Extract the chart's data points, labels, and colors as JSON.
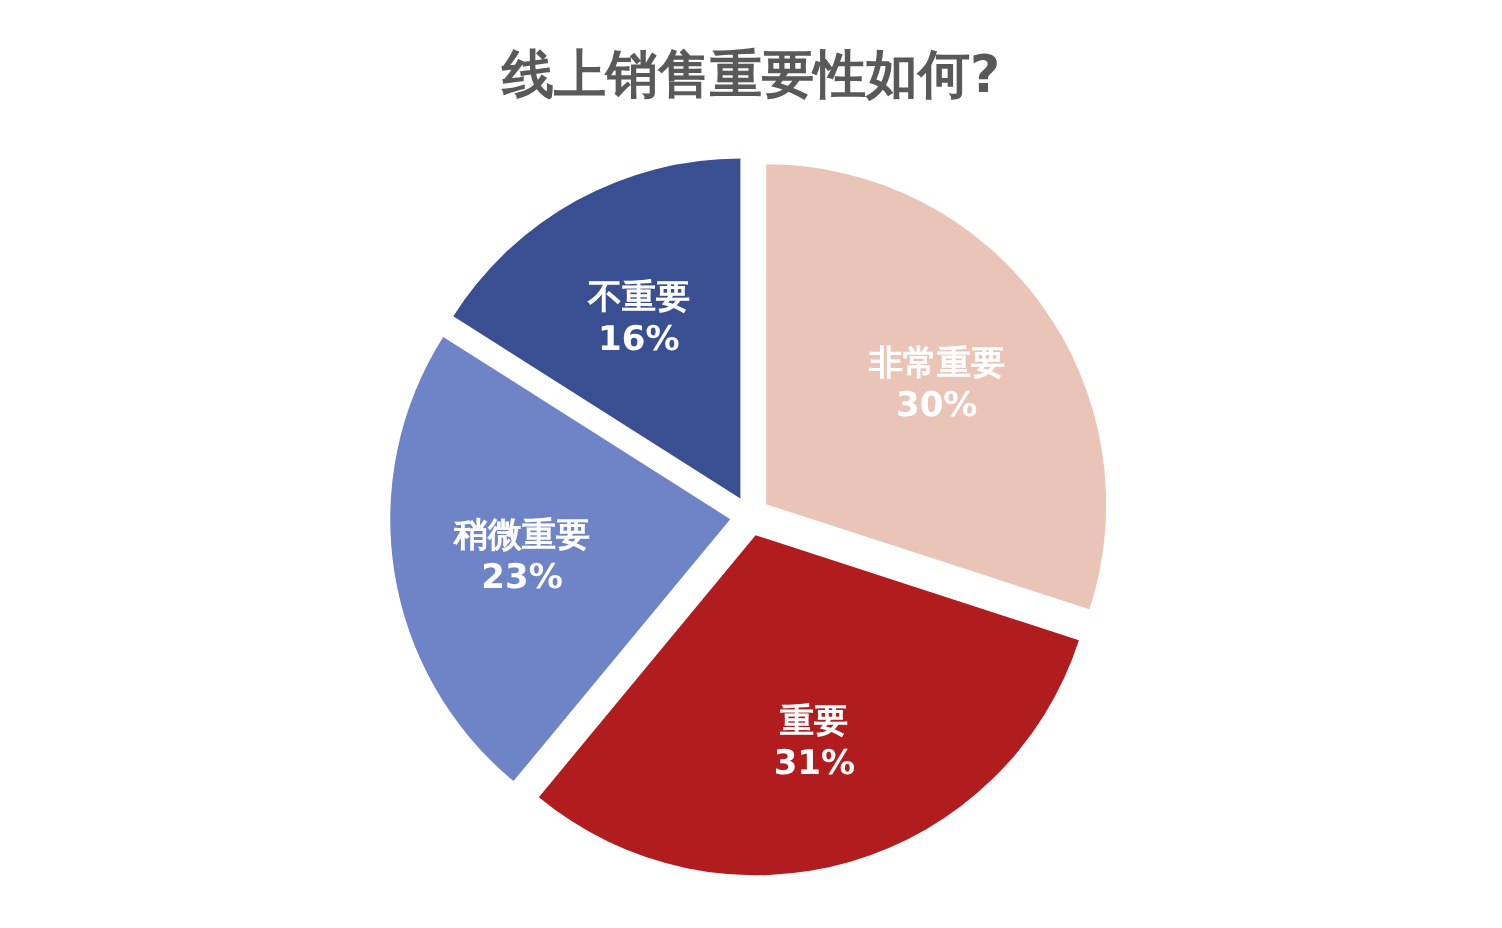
{
  "chart_data": {
    "type": "pie",
    "title": "线上销售重要性如何?",
    "categories": [
      "非常重要",
      "重要",
      "稍微重要",
      "不重要"
    ],
    "values": [
      30,
      31,
      23,
      16
    ],
    "colors": [
      "#ebc4b8",
      "#b11c1f",
      "#6f84c6",
      "#3a4e92"
    ],
    "value_labels": [
      "30%",
      "31%",
      "23%",
      "16%"
    ]
  }
}
